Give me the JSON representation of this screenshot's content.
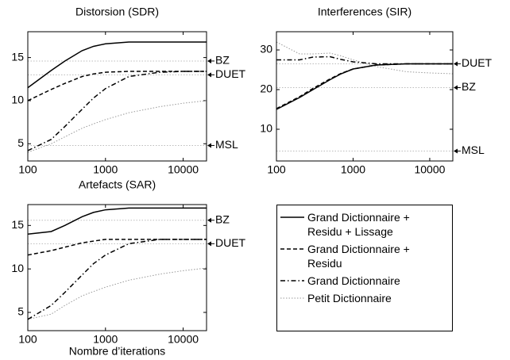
{
  "chart_data": [
    {
      "type": "line",
      "title": "Distorsion (SDR)",
      "xscale": "log",
      "xlim": [
        100,
        20000
      ],
      "xticks": [
        100,
        1000,
        10000
      ],
      "ylim": [
        3,
        18
      ],
      "yticks": [
        5,
        10,
        15
      ],
      "x": [
        100,
        200,
        300,
        500,
        700,
        1000,
        2000,
        5000,
        10000,
        20000
      ],
      "series": [
        {
          "name": "Grand Dictionnaire + Residu + Lissage",
          "color": "#000000",
          "dash": "solid",
          "values": [
            11.5,
            13.5,
            14.6,
            15.8,
            16.3,
            16.6,
            16.8,
            16.8,
            16.8,
            16.8
          ]
        },
        {
          "name": "Grand Dictionnaire + Residu",
          "color": "#000000",
          "dash": "dashed",
          "values": [
            10.0,
            11.3,
            12.0,
            12.8,
            13.1,
            13.3,
            13.4,
            13.4,
            13.4,
            13.4
          ]
        },
        {
          "name": "Grand Dictionnaire",
          "color": "#000000",
          "dash": "dashdot",
          "values": [
            4.2,
            5.5,
            7.0,
            9.0,
            10.3,
            11.4,
            12.8,
            13.3,
            13.4,
            13.4
          ]
        },
        {
          "name": "Petit Dictionnaire",
          "color": "#999999",
          "dash": "dotted",
          "values": [
            4.0,
            5.0,
            5.8,
            6.8,
            7.3,
            7.8,
            8.6,
            9.3,
            9.7,
            10.0
          ]
        }
      ],
      "annotations": [
        {
          "label": "BZ",
          "value": 14.6
        },
        {
          "label": "DUET",
          "value": 13.0
        },
        {
          "label": "MSL",
          "value": 4.8
        }
      ]
    },
    {
      "type": "line",
      "title": "Interferences (SIR)",
      "xscale": "log",
      "xlim": [
        100,
        20000
      ],
      "xticks": [
        100,
        1000,
        10000
      ],
      "ylim": [
        2,
        34.6
      ],
      "yticks": [
        10,
        20,
        30
      ],
      "x": [
        100,
        200,
        300,
        500,
        700,
        1000,
        2000,
        5000,
        10000,
        20000
      ],
      "series": [
        {
          "color": "#000000",
          "dash": "solid",
          "values": [
            15,
            18,
            20,
            22.5,
            24,
            25.2,
            26.2,
            26.5,
            26.5,
            26.5
          ]
        },
        {
          "color": "#000000",
          "dash": "dashed",
          "values": [
            15.2,
            18.2,
            20.3,
            22.7,
            24.1,
            25.2,
            26.2,
            26.5,
            26.5,
            26.5
          ]
        },
        {
          "color": "#000000",
          "dash": "dashdot",
          "values": [
            27.5,
            27.5,
            28.2,
            28.3,
            27.6,
            27,
            26.5,
            26.5,
            26.5,
            26.5
          ]
        },
        {
          "color": "#999999",
          "dash": "dotted",
          "values": [
            32,
            29,
            29,
            29.2,
            28.5,
            27.5,
            25.8,
            24.5,
            24.2,
            24
          ]
        }
      ],
      "annotations": [
        {
          "label": "DUET",
          "value": 26.5
        },
        {
          "label": "BZ",
          "value": 20.5
        },
        {
          "label": "MSL",
          "value": 4.5
        }
      ]
    },
    {
      "type": "line",
      "title": "Artefacts (SAR)",
      "xlabel": "Nombre d’iterations",
      "xscale": "log",
      "xlim": [
        100,
        20000
      ],
      "xticks": [
        100,
        1000,
        10000
      ],
      "ylim": [
        2.9,
        17.4
      ],
      "yticks": [
        5,
        10,
        15
      ],
      "x": [
        100,
        200,
        300,
        500,
        700,
        1000,
        2000,
        5000,
        10000,
        20000
      ],
      "series": [
        {
          "color": "#000000",
          "dash": "solid",
          "values": [
            14,
            14.3,
            15,
            16,
            16.5,
            16.8,
            17,
            17,
            17,
            17
          ]
        },
        {
          "color": "#000000",
          "dash": "dashed",
          "values": [
            11.6,
            12.1,
            12.5,
            13,
            13.2,
            13.4,
            13.4,
            13.4,
            13.4,
            13.4
          ]
        },
        {
          "color": "#000000",
          "dash": "dashdot",
          "values": [
            4.2,
            5.8,
            7.3,
            9.3,
            10.6,
            11.6,
            12.9,
            13.4,
            13.4,
            13.4
          ]
        },
        {
          "color": "#999999",
          "dash": "dotted",
          "values": [
            4.2,
            4.8,
            5.8,
            6.9,
            7.4,
            7.9,
            8.7,
            9.4,
            9.8,
            10.1
          ]
        }
      ],
      "annotations": [
        {
          "label": "BZ",
          "value": 15.6
        },
        {
          "label": "DUET",
          "value": 12.9
        }
      ]
    }
  ]
}
